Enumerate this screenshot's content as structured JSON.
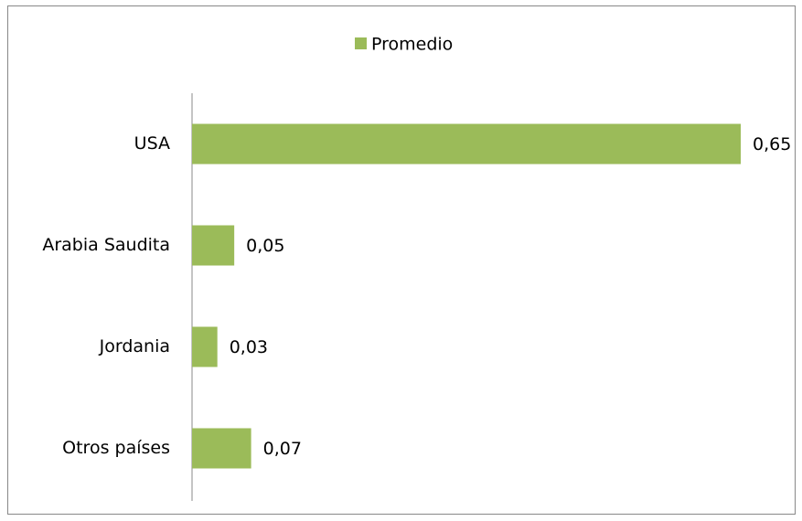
{
  "chart_data": {
    "type": "barh",
    "categories": [
      "USA",
      "Arabia Saudita",
      "Jordania",
      "Otros países"
    ],
    "series": [
      {
        "name": "Promedio",
        "color": "#9bbb59",
        "values": [
          0.65,
          0.05,
          0.03,
          0.07
        ],
        "value_labels": [
          "0,65",
          "0,05",
          "0,03",
          "0,07"
        ]
      }
    ],
    "legend": "top"
  }
}
